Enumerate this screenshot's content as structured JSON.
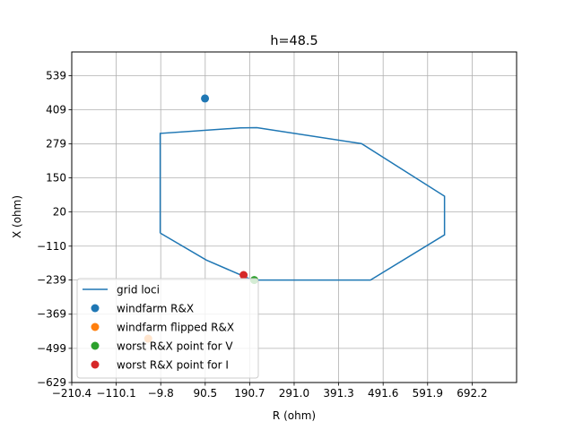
{
  "chart_data": {
    "type": "scatter",
    "title": "h=48.5",
    "xlabel": "R (ohm)",
    "ylabel": "X (ohm)",
    "xlim": [
      -210.4,
      792.5
    ],
    "ylim": [
      -629,
      629
    ],
    "xticks": [
      -210.4,
      -110.1,
      -9.8,
      90.5,
      190.7,
      291.0,
      391.3,
      491.6,
      591.9,
      692.2
    ],
    "xtick_labels": [
      "−210.4",
      "−110.1",
      "−9.8",
      "90.5",
      "190.7",
      "291.0",
      "391.3",
      "491.6",
      "591.9",
      "692.2"
    ],
    "yticks": [
      -629,
      -499,
      -369,
      -239,
      -110,
      20,
      150,
      279,
      409,
      539
    ],
    "ytick_labels": [
      "−629",
      "−499",
      "−369",
      "−239",
      "−110",
      "20",
      "150",
      "279",
      "409",
      "539"
    ],
    "grid": true,
    "legend_position": "lower-left",
    "series": [
      {
        "name": "grid loci",
        "kind": "line",
        "color": "#1f77b4",
        "x": [
          -11,
          93,
          197,
          364,
          463,
          630,
          630,
          443,
          207,
          170,
          -11,
          -11
        ],
        "y": [
          -60,
          -163,
          -239,
          -239,
          -239,
          -67,
          80,
          280,
          341,
          340,
          319,
          121
        ]
      },
      {
        "name": "windfarm R&X",
        "kind": "scatter",
        "color": "#1f77b4",
        "x": [
          90
        ],
        "y": [
          452
        ]
      },
      {
        "name": "windfarm flipped R&X",
        "kind": "scatter",
        "color": "#ff7f0e",
        "x": [
          -38
        ],
        "y": [
          -462
        ]
      },
      {
        "name": "worst R&X point for V",
        "kind": "scatter",
        "color": "#2ca02c",
        "x": [
          201
        ],
        "y": [
          -239
        ]
      },
      {
        "name": "worst R&X point for I",
        "kind": "scatter",
        "color": "#d62728",
        "x": [
          177
        ],
        "y": [
          -220
        ]
      }
    ]
  }
}
